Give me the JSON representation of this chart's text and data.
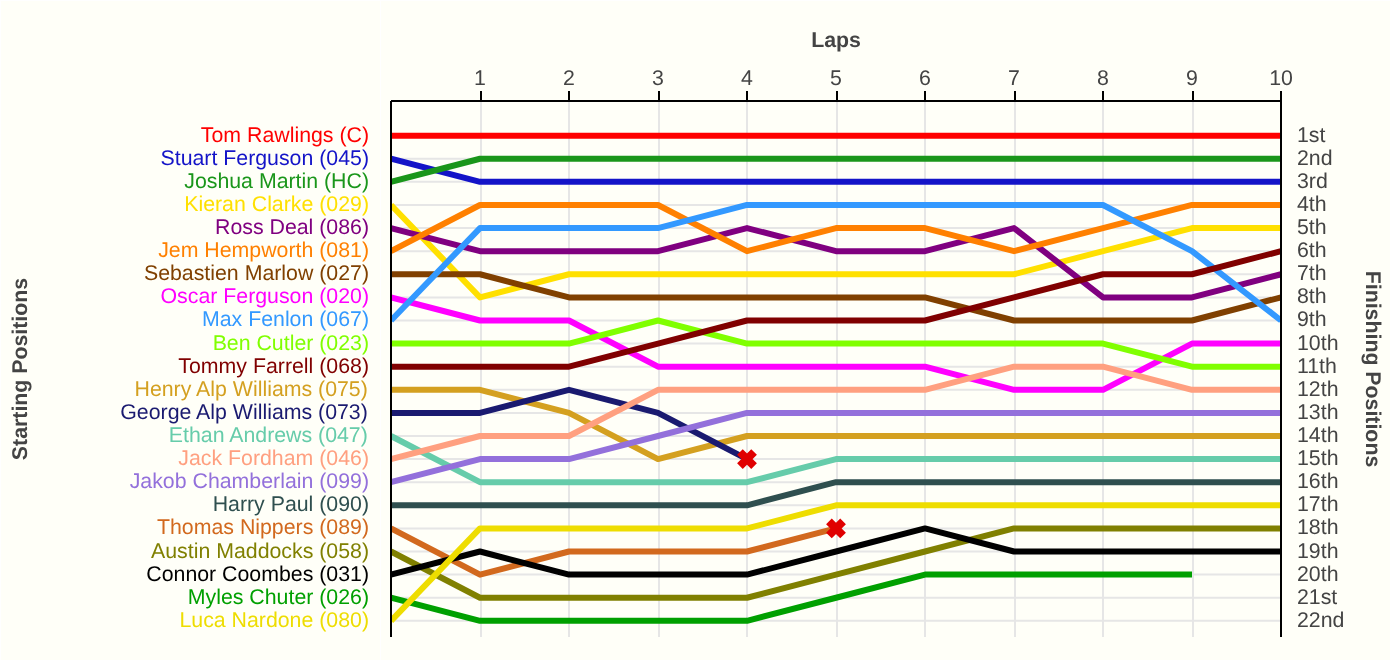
{
  "chart_data": {
    "type": "line",
    "xlabel": "Laps",
    "legend_title": "Starting Positions",
    "ylabel": "Finishing Positions",
    "x": [
      0,
      1,
      2,
      3,
      4,
      5,
      6,
      7,
      8,
      9,
      10
    ],
    "xlim": [
      0,
      10
    ],
    "xticks": [
      1,
      2,
      3,
      4,
      5,
      6,
      7,
      8,
      9,
      10
    ],
    "ylim": [
      22.7,
      -0.5
    ],
    "yticks": [
      {
        "value": 1,
        "label": "1st"
      },
      {
        "value": 2,
        "label": "2nd"
      },
      {
        "value": 3,
        "label": "3rd"
      },
      {
        "value": 4,
        "label": "4th"
      },
      {
        "value": 5,
        "label": "5th"
      },
      {
        "value": 6,
        "label": "6th"
      },
      {
        "value": 7,
        "label": "7th"
      },
      {
        "value": 8,
        "label": "8th"
      },
      {
        "value": 9,
        "label": "9th"
      },
      {
        "value": 10,
        "label": "10th"
      },
      {
        "value": 11,
        "label": "11th"
      },
      {
        "value": 12,
        "label": "12th"
      },
      {
        "value": 13,
        "label": "13th"
      },
      {
        "value": 14,
        "label": "14th"
      },
      {
        "value": 15,
        "label": "15th"
      },
      {
        "value": 16,
        "label": "16th"
      },
      {
        "value": 17,
        "label": "17th"
      },
      {
        "value": 18,
        "label": "18th"
      },
      {
        "value": 19,
        "label": "19th"
      },
      {
        "value": 20,
        "label": "20th"
      },
      {
        "value": 21,
        "label": "21st"
      },
      {
        "value": 22,
        "label": "22nd"
      }
    ],
    "grid": true,
    "marker": "none",
    "line_style": "solid",
    "series": [
      {
        "name": "Tom Rawlings (C)",
        "color": "#ff0000",
        "values": [
          1,
          1,
          1,
          1,
          1,
          1,
          1,
          1,
          1,
          1,
          1
        ]
      },
      {
        "name": "Stuart Ferguson (045)",
        "color": "#1414c8",
        "values": [
          2,
          3,
          3,
          3,
          3,
          3,
          3,
          3,
          3,
          3,
          3
        ]
      },
      {
        "name": "Joshua Martin (HC)",
        "color": "#1a961a",
        "values": [
          3,
          2,
          2,
          2,
          2,
          2,
          2,
          2,
          2,
          2,
          2
        ]
      },
      {
        "name": "Kieran Clarke (029)",
        "color": "#ffe000",
        "values": [
          4,
          8,
          7,
          7,
          7,
          7,
          7,
          7,
          6,
          5,
          5
        ]
      },
      {
        "name": "Ross Deal (086)",
        "color": "#800080",
        "values": [
          5,
          6,
          6,
          6,
          5,
          6,
          6,
          5,
          8,
          8,
          7
        ]
      },
      {
        "name": "Jem Hempworth (081)",
        "color": "#ff8000",
        "values": [
          6,
          4,
          4,
          4,
          6,
          5,
          5,
          6,
          5,
          4,
          4
        ]
      },
      {
        "name": "Sebastien Marlow (027)",
        "color": "#804000",
        "values": [
          7,
          7,
          8,
          8,
          8,
          8,
          8,
          9,
          9,
          9,
          8
        ]
      },
      {
        "name": "Oscar Ferguson (020)",
        "color": "#ff00ff",
        "values": [
          8,
          9,
          9,
          11,
          11,
          11,
          11,
          12,
          12,
          10,
          10
        ]
      },
      {
        "name": "Max Fenlon (067)",
        "color": "#3399ff",
        "values": [
          9,
          5,
          5,
          5,
          4,
          4,
          4,
          4,
          4,
          6,
          9
        ]
      },
      {
        "name": "Ben Cutler (023)",
        "color": "#80ff00",
        "values": [
          10,
          10,
          10,
          9,
          10,
          10,
          10,
          10,
          10,
          11,
          11
        ]
      },
      {
        "name": "Tommy Farrell (068)",
        "color": "#800000",
        "values": [
          11,
          11,
          11,
          10,
          9,
          9,
          9,
          8,
          7,
          7,
          6
        ]
      },
      {
        "name": "Henry Alp Williams (075)",
        "color": "#d4a020",
        "values": [
          12,
          12,
          13,
          15,
          14,
          14,
          14,
          14,
          14,
          14,
          14
        ]
      },
      {
        "name": "George Alp Williams (073)",
        "color": "#1a1a70",
        "values": [
          13,
          13,
          12,
          13,
          15,
          null,
          null,
          null,
          null,
          null,
          null
        ]
      },
      {
        "name": "Ethan Andrews (047)",
        "color": "#66ccaa",
        "values": [
          14,
          16,
          16,
          16,
          16,
          15,
          15,
          15,
          15,
          15,
          15
        ]
      },
      {
        "name": "Jack Fordham (046)",
        "color": "#ffa080",
        "values": [
          15,
          14,
          14,
          12,
          12,
          12,
          12,
          11,
          11,
          12,
          12
        ]
      },
      {
        "name": "Jakob Chamberlain (099)",
        "color": "#9370db",
        "values": [
          16,
          15,
          15,
          14,
          13,
          13,
          13,
          13,
          13,
          13,
          13
        ]
      },
      {
        "name": "Harry Paul (090)",
        "color": "#2f4f4f",
        "values": [
          17,
          17,
          17,
          17,
          17,
          16,
          16,
          16,
          16,
          16,
          16
        ]
      },
      {
        "name": "Thomas Nippers (089)",
        "color": "#d2691e",
        "values": [
          18,
          20,
          19,
          19,
          19,
          18,
          null,
          null,
          null,
          null,
          null
        ]
      },
      {
        "name": "Austin Maddocks (058)",
        "color": "#808000",
        "values": [
          19,
          21,
          21,
          21,
          21,
          20,
          19,
          18,
          18,
          18,
          18
        ]
      },
      {
        "name": "Connor Coombes (031)",
        "color": "#000000",
        "values": [
          20,
          19,
          20,
          20,
          20,
          19,
          18,
          19,
          19,
          19,
          19
        ]
      },
      {
        "name": "Myles Chuter (026)",
        "color": "#00a000",
        "values": [
          21,
          22,
          22,
          22,
          22,
          21,
          20,
          20,
          20,
          20,
          null
        ]
      },
      {
        "name": "Luca Nardone (080)",
        "color": "#eedd00",
        "values": [
          22,
          18,
          18,
          18,
          18,
          17,
          17,
          17,
          17,
          17,
          17
        ]
      },
      {
        "type": "scatter",
        "marker": "cross",
        "color": "#e00000",
        "x": [
          4,
          5
        ],
        "values": [
          15,
          18
        ]
      }
    ]
  }
}
